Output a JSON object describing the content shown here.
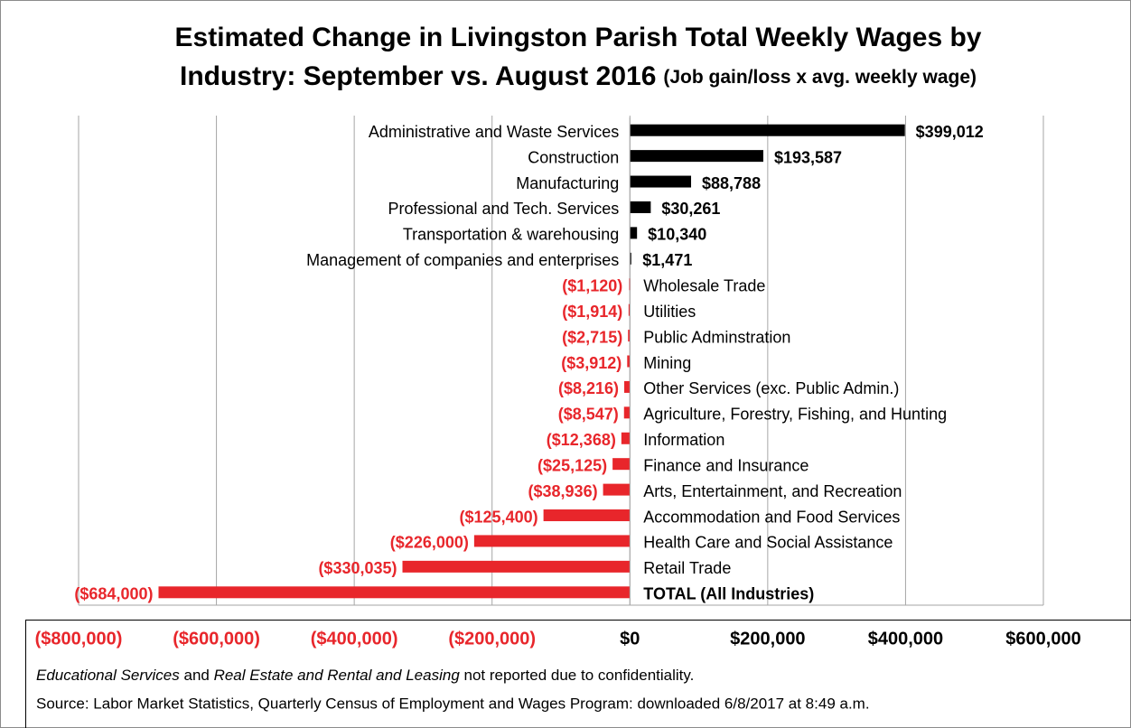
{
  "chart_data": {
    "type": "hbar",
    "title": [
      "Estimated Change in Livingston Parish Total Weekly Wages by",
      "Industry: September vs. August 2016"
    ],
    "subtitle": "(Job gain/loss x avg. weekly wage)",
    "categories": [
      "Administrative and Waste Services",
      "Construction",
      "Manufacturing",
      "Professional and Tech. Services",
      "Transportation & warehousing",
      "Management of companies and enterprises",
      "Wholesale Trade",
      "Utilities",
      "Public Adminstration",
      "Mining",
      "Other Services (exc. Public Admin.)",
      "Agriculture, Forestry, Fishing, and Hunting",
      "Information",
      "Finance and Insurance",
      "Arts, Entertainment, and Recreation",
      "Accommodation and Food Services",
      "Health Care and Social Assistance",
      "Retail Trade",
      "TOTAL (All Industries)"
    ],
    "values": [
      399012,
      193587,
      88788,
      30261,
      10340,
      1471,
      -1120,
      -1914,
      -2715,
      -3912,
      -8216,
      -8547,
      -12368,
      -25125,
      -38936,
      -125400,
      -226000,
      -330035,
      -684000
    ],
    "value_labels": [
      "$399,012",
      "$193,587",
      "$88,788",
      "$30,261",
      "$10,340",
      "$1,471",
      "($1,120)",
      "($1,914)",
      "($2,715)",
      "($3,912)",
      "($8,216)",
      "($8,547)",
      "($12,368)",
      "($25,125)",
      "($38,936)",
      "($125,400)",
      "($226,000)",
      "($330,035)",
      "($684,000)"
    ],
    "colors": {
      "positive": "#000000",
      "negative": "#e8262b"
    },
    "xlim": [
      -800000,
      600000
    ],
    "xticks": [
      {
        "value": -800000,
        "label": "($800,000)"
      },
      {
        "value": -600000,
        "label": "($600,000)"
      },
      {
        "value": -400000,
        "label": "($400,000)"
      },
      {
        "value": -200000,
        "label": "($200,000)"
      },
      {
        "value": 0,
        "label": "$0"
      },
      {
        "value": 200000,
        "label": "$200,000"
      },
      {
        "value": 400000,
        "label": "$400,000"
      },
      {
        "value": 600000,
        "label": "$600,000"
      }
    ],
    "grid": true,
    "footnote": [
      "Educational Services",
      " and ",
      "Real Estate and Rental and Leasing",
      " not reported due to confidentiality."
    ],
    "source": "Source: Labor Market Statistics, Quarterly Census of Employment and Wages Program: downloaded 6/8/2017 at 8:49 a.m."
  }
}
